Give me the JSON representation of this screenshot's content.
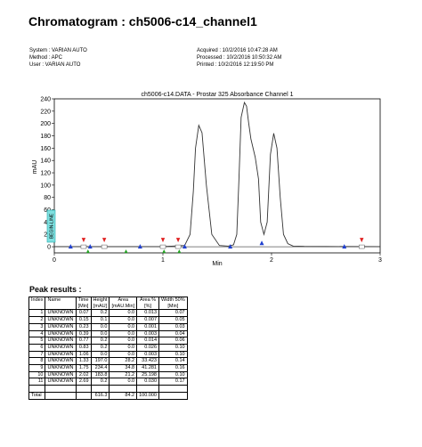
{
  "header": {
    "title": "Chromatogram : ch5006-c14_channel1",
    "system": "System : VARIAN AUTO",
    "method": "Method : APC",
    "user": "User : VARIAN AUTO",
    "acquired": "Acquired : 10/2/2016 10:47:28 AM",
    "processed": "Processed : 10/2/2016 10:50:32 AM",
    "printed": "Printed : 10/2/2016 12:19:50 PM"
  },
  "chart_data": {
    "type": "line",
    "title": "ch5006-c14.DATA - Prostar 325 Absorbance Channel 1",
    "xlabel": "Min",
    "ylabel": "mAU",
    "xlim": [
      0,
      3
    ],
    "ylim": [
      -10,
      240
    ],
    "xticks": [
      "0",
      "1",
      "2",
      "3"
    ],
    "yticks": [
      "0",
      "20",
      "40",
      "60",
      "80",
      "100",
      "120",
      "140",
      "160",
      "180",
      "200",
      "220",
      "240"
    ],
    "side_label": "BEGIN-LINE",
    "series": [
      {
        "x": [
          0,
          0.5,
          1.0,
          1.2,
          1.25,
          1.28,
          1.3,
          1.33,
          1.36,
          1.4,
          1.45,
          1.52,
          1.6,
          1.65,
          1.68,
          1.7,
          1.72,
          1.75,
          1.77,
          1.79,
          1.81,
          1.85,
          1.88,
          1.9,
          1.93,
          1.96,
          1.99,
          2.02,
          2.05,
          2.08,
          2.11,
          2.15,
          2.2,
          2.3,
          2.5,
          3.0
        ],
        "y": [
          0.2,
          0.2,
          0.2,
          2,
          20,
          90,
          160,
          197,
          185,
          100,
          20,
          2,
          1,
          3,
          20,
          110,
          210,
          234,
          228,
          200,
          175,
          145,
          110,
          40,
          20,
          40,
          150,
          184,
          160,
          80,
          20,
          5,
          1,
          0.5,
          0.3,
          0.2
        ]
      }
    ],
    "event_markers": [
      {
        "x": 0.27,
        "type": "red-arrow"
      },
      {
        "x": 0.46,
        "type": "red-arrow"
      },
      {
        "x": 1.0,
        "type": "red-arrow"
      },
      {
        "x": 1.14,
        "type": "red-arrow"
      },
      {
        "x": 2.83,
        "type": "red-arrow"
      },
      {
        "x": 0.15,
        "type": "blue-triangle"
      },
      {
        "x": 0.33,
        "type": "blue-triangle"
      },
      {
        "x": 0.79,
        "type": "blue-triangle"
      },
      {
        "x": 1.2,
        "type": "blue-triangle"
      },
      {
        "x": 1.62,
        "type": "blue-triangle"
      },
      {
        "x": 1.91,
        "type": "blue-triangle"
      },
      {
        "x": 2.67,
        "type": "blue-triangle"
      },
      {
        "x": 0.31,
        "type": "green-arrow"
      },
      {
        "x": 0.66,
        "type": "green-arrow"
      },
      {
        "x": 1.01,
        "type": "green-arrow"
      },
      {
        "x": 1.15,
        "type": "green-arrow"
      }
    ]
  },
  "peaks": {
    "title": "Peak results :",
    "columns": [
      "Index",
      "Name",
      "Time [Min]",
      "Height [mAU]",
      "Area [mAU.Min]",
      "Area % [%]",
      "Width 50% [Min]"
    ],
    "rows": [
      [
        "1",
        "UNKNOWN",
        "0.07",
        "0.2",
        "0.0",
        "0.013",
        "0.07"
      ],
      [
        "2",
        "UNKNOWN",
        "0.15",
        "0.1",
        "0.0",
        "0.007",
        "0.05"
      ],
      [
        "3",
        "UNKNOWN",
        "0.23",
        "0.0",
        "0.0",
        "0.001",
        "0.03"
      ],
      [
        "4",
        "UNKNOWN",
        "0.39",
        "0.0",
        "0.0",
        "0.003",
        "0.04"
      ],
      [
        "5",
        "UNKNOWN",
        "0.77",
        "0.2",
        "0.0",
        "0.014",
        "0.06"
      ],
      [
        "6",
        "UNKNOWN",
        "0.83",
        "0.2",
        "0.0",
        "0.026",
        "0.10"
      ],
      [
        "7",
        "UNKNOWN",
        "1.06",
        "0.0",
        "0.0",
        "0.003",
        "0.10"
      ],
      [
        "8",
        "UNKNOWN",
        "1.33",
        "197.0",
        "28.2",
        "33.423",
        "0.14"
      ],
      [
        "9",
        "UNKNOWN",
        "1.75",
        "234.4",
        "34.8",
        "41.281",
        "0.16"
      ],
      [
        "10",
        "UNKNOWN",
        "2.02",
        "183.8",
        "21.2",
        "25.198",
        "0.10"
      ],
      [
        "11",
        "UNKNOWN",
        "2.69",
        "0.2",
        "0.0",
        "0.030",
        "0.17"
      ]
    ],
    "total": {
      "label": "Total",
      "height": "616.3",
      "area": "84.2",
      "area_pct": "100.000"
    }
  }
}
